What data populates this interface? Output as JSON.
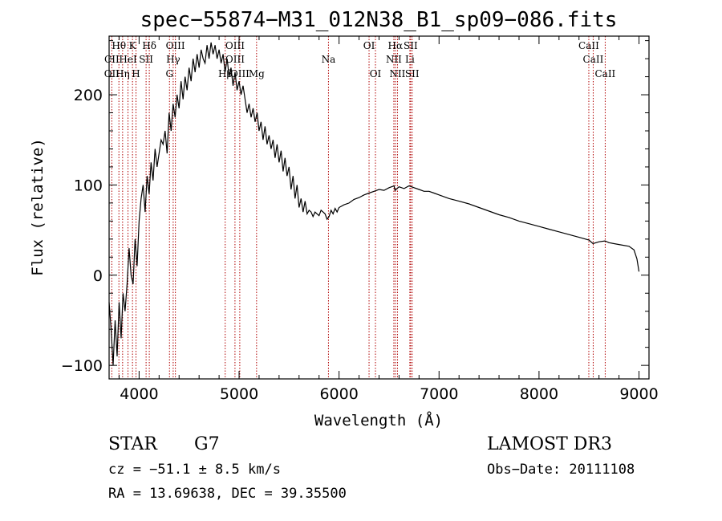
{
  "chart_data": {
    "type": "line",
    "title": "spec−55874−M31_012N38_B1_sp09−086.fits",
    "xlabel": "Wavelength (Å)",
    "ylabel": "Flux (relative)",
    "xlim": [
      3700,
      9100
    ],
    "ylim": [
      -115,
      265
    ],
    "xticks": [
      4000,
      5000,
      6000,
      7000,
      8000,
      9000
    ],
    "yticks": [
      -100,
      0,
      100,
      200
    ],
    "series": [
      {
        "name": "flux",
        "x": [
          3700,
          3720,
          3740,
          3760,
          3780,
          3800,
          3820,
          3840,
          3860,
          3880,
          3900,
          3920,
          3940,
          3960,
          3980,
          4000,
          4020,
          4040,
          4060,
          4080,
          4100,
          4120,
          4140,
          4160,
          4180,
          4200,
          4220,
          4240,
          4260,
          4280,
          4300,
          4320,
          4340,
          4360,
          4380,
          4400,
          4420,
          4440,
          4460,
          4480,
          4500,
          4520,
          4540,
          4560,
          4580,
          4600,
          4620,
          4640,
          4660,
          4680,
          4700,
          4720,
          4740,
          4760,
          4780,
          4800,
          4820,
          4840,
          4860,
          4880,
          4900,
          4920,
          4940,
          4960,
          4980,
          5000,
          5020,
          5040,
          5060,
          5080,
          5100,
          5120,
          5140,
          5160,
          5180,
          5200,
          5220,
          5240,
          5260,
          5280,
          5300,
          5320,
          5340,
          5360,
          5380,
          5400,
          5420,
          5440,
          5460,
          5480,
          5500,
          5520,
          5540,
          5560,
          5580,
          5600,
          5620,
          5640,
          5660,
          5680,
          5700,
          5720,
          5740,
          5760,
          5780,
          5800,
          5820,
          5840,
          5860,
          5880,
          5900,
          5920,
          5940,
          5960,
          5980,
          6000,
          6050,
          6100,
          6150,
          6200,
          6250,
          6300,
          6350,
          6400,
          6450,
          6500,
          6550,
          6560,
          6600,
          6650,
          6700,
          6750,
          6800,
          6850,
          6900,
          6950,
          7000,
          7100,
          7200,
          7300,
          7400,
          7500,
          7600,
          7700,
          7800,
          7900,
          8000,
          8100,
          8200,
          8300,
          8400,
          8500,
          8540,
          8600,
          8660,
          8700,
          8800,
          8900,
          8950,
          8980,
          9000
        ],
        "values": [
          -30,
          -60,
          -100,
          -50,
          -90,
          -30,
          -70,
          -20,
          -40,
          -10,
          30,
          0,
          -10,
          40,
          10,
          60,
          85,
          100,
          70,
          110,
          90,
          125,
          105,
          140,
          120,
          135,
          150,
          145,
          160,
          135,
          180,
          160,
          190,
          175,
          200,
          185,
          215,
          195,
          220,
          205,
          230,
          215,
          240,
          225,
          245,
          230,
          250,
          240,
          235,
          255,
          240,
          258,
          245,
          255,
          240,
          250,
          235,
          245,
          225,
          240,
          220,
          230,
          210,
          225,
          205,
          215,
          200,
          210,
          195,
          180,
          190,
          175,
          185,
          170,
          180,
          160,
          170,
          150,
          165,
          145,
          155,
          140,
          150,
          130,
          145,
          125,
          138,
          115,
          130,
          110,
          120,
          95,
          110,
          85,
          100,
          75,
          85,
          70,
          82,
          68,
          72,
          70,
          65,
          70,
          68,
          66,
          72,
          70,
          68,
          62,
          65,
          72,
          68,
          74,
          70,
          75,
          78,
          80,
          84,
          86,
          89,
          91,
          93,
          95,
          94,
          97,
          99,
          94,
          98,
          96,
          99,
          97,
          95,
          93,
          93,
          91,
          89,
          85,
          82,
          79,
          75,
          71,
          67,
          64,
          60,
          57,
          54,
          51,
          48,
          45,
          42,
          39,
          35,
          37,
          38,
          36,
          34,
          32,
          28,
          18,
          4
        ]
      }
    ],
    "emission_lines": [
      {
        "label": "Hθ",
        "x": 3798,
        "row": 0
      },
      {
        "label": "CII",
        "x": 3727,
        "row": 1
      },
      {
        "label": "OII",
        "x": 3727,
        "row": 2
      },
      {
        "label": "HeI",
        "x": 3889,
        "row": 1
      },
      {
        "label": "Hη",
        "x": 3835,
        "row": 2
      },
      {
        "label": "K",
        "x": 3934,
        "row": 0
      },
      {
        "label": "H",
        "x": 3969,
        "row": 2
      },
      {
        "label": "Hδ",
        "x": 4102,
        "row": 0
      },
      {
        "label": "SII",
        "x": 4070,
        "row": 1
      },
      {
        "label": "OIII",
        "x": 4363,
        "row": 0
      },
      {
        "label": "Hγ",
        "x": 4341,
        "row": 1
      },
      {
        "label": "G",
        "x": 4304,
        "row": 2
      },
      {
        "label": "Hβ",
        "x": 4861,
        "row": 2
      },
      {
        "label": "OIII",
        "x": 4959,
        "row": 0
      },
      {
        "label": "OIII",
        "x": 4959,
        "row": 1
      },
      {
        "label": "OIII",
        "x": 5007,
        "row": 2
      },
      {
        "label": "Mg",
        "x": 5175,
        "row": 2
      },
      {
        "label": "Na",
        "x": 5894,
        "row": 1
      },
      {
        "label": "OI",
        "x": 6300,
        "row": 0
      },
      {
        "label": "OI",
        "x": 6364,
        "row": 2
      },
      {
        "label": "Hα",
        "x": 6563,
        "row": 0
      },
      {
        "label": "NII",
        "x": 6548,
        "row": 1
      },
      {
        "label": "NII",
        "x": 6584,
        "row": 2
      },
      {
        "label": "SII",
        "x": 6716,
        "row": 0
      },
      {
        "label": "Li",
        "x": 6708,
        "row": 1
      },
      {
        "label": "SII",
        "x": 6731,
        "row": 2
      },
      {
        "label": "CaII",
        "x": 8498,
        "row": 0
      },
      {
        "label": "CaII",
        "x": 8542,
        "row": 1
      },
      {
        "label": "CaII",
        "x": 8662,
        "row": 2
      }
    ],
    "line_positions": [
      3727,
      3798,
      3835,
      3889,
      3934,
      3969,
      4070,
      4102,
      4304,
      4341,
      4363,
      4861,
      4959,
      5007,
      5175,
      5894,
      6300,
      6364,
      6548,
      6563,
      6584,
      6708,
      6716,
      6731,
      8498,
      8542,
      8662
    ],
    "line_color": "#b00000"
  },
  "info": {
    "class_label": "STAR",
    "subclass": "G7",
    "survey": "LAMOST DR3",
    "cz": "cz = −51.1 ± 8.5 km/s",
    "obs_date": "Obs−Date: 20111108",
    "coords": "RA =  13.69638, DEC =  39.35500"
  }
}
